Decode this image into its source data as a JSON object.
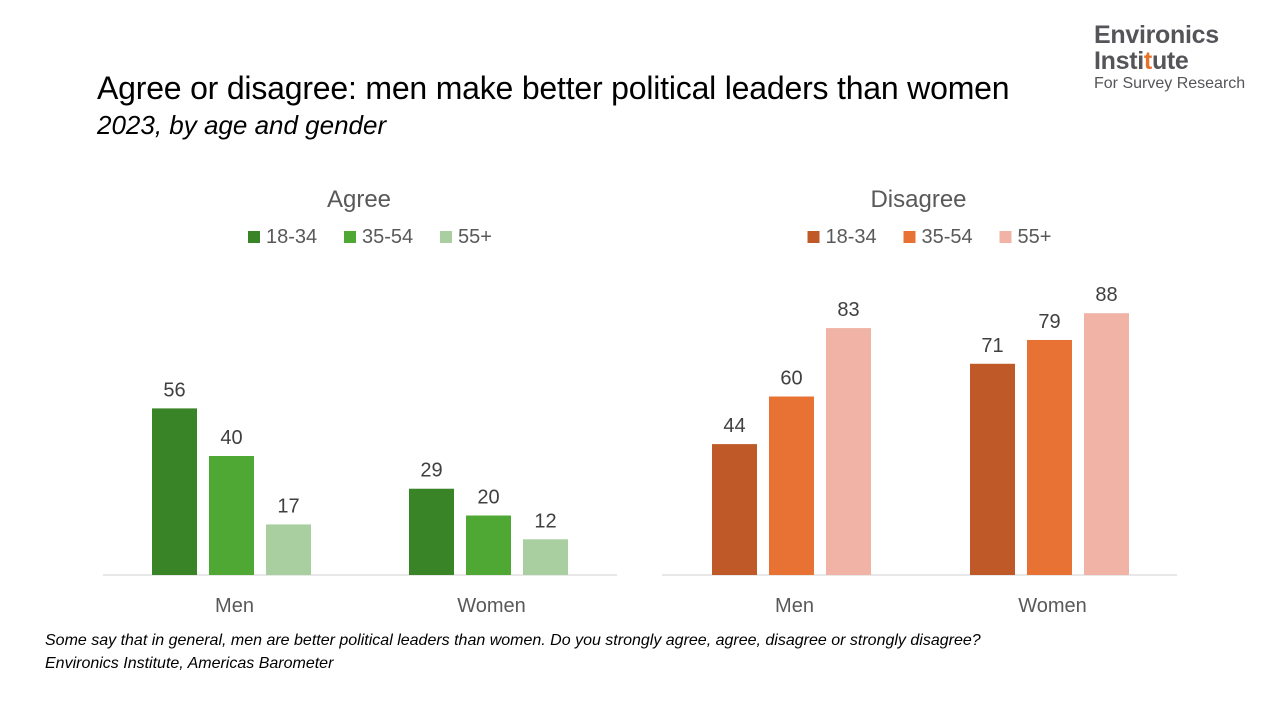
{
  "title": "Agree or disagree: men make better political leaders than women",
  "subtitle": "2023, by age and gender",
  "logo": {
    "line1": "Environics",
    "line2_a": "Insti",
    "line2_b": "t",
    "line2_c": "ute",
    "line3": "For Survey Research",
    "accent_color": "#e8702a"
  },
  "footnote": {
    "question": "Some say that in general, men are better political leaders than women. Do you strongly agree, agree, disagree or strongly disagree?",
    "source": "Environics Institute, Americas Barometer"
  },
  "chart_data": [
    {
      "type": "bar",
      "title": "Agree",
      "categories": [
        "Men",
        "Women"
      ],
      "series": [
        {
          "name": "18-34",
          "values": [
            56,
            29
          ],
          "color": "#3a8428"
        },
        {
          "name": "35-54",
          "values": [
            40,
            20
          ],
          "color": "#4ea833"
        },
        {
          "name": "55+",
          "values": [
            17,
            12
          ],
          "color": "#a9cfa0"
        }
      ],
      "ylim": [
        0,
        100
      ],
      "legend": "top",
      "grid": false,
      "data_labels": true
    },
    {
      "type": "bar",
      "title": "Disagree",
      "categories": [
        "Men",
        "Women"
      ],
      "series": [
        {
          "name": "18-34",
          "values": [
            44,
            71
          ],
          "color": "#bf5a28"
        },
        {
          "name": "35-54",
          "values": [
            60,
            79
          ],
          "color": "#e87234"
        },
        {
          "name": "55+",
          "values": [
            83,
            88
          ],
          "color": "#f0b3a5"
        }
      ],
      "ylim": [
        0,
        100
      ],
      "legend": "top",
      "grid": false,
      "data_labels": true
    }
  ]
}
